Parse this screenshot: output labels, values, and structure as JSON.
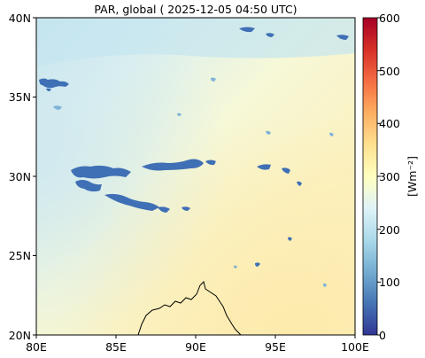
{
  "title": "PAR, global ( 2025-12-05 04:50 UTC)",
  "map": {
    "type": "map",
    "x_ticks": [
      "80E",
      "85E",
      "90E",
      "95E",
      "100E"
    ],
    "y_ticks": [
      "40N",
      "35N",
      "30N",
      "25N",
      "20N"
    ],
    "x_range": [
      80,
      100
    ],
    "y_range": [
      20,
      40
    ]
  },
  "colorbar": {
    "label": "[Wm⁻²]",
    "ticks": [
      "600",
      "500",
      "400",
      "300",
      "200",
      "100",
      "0"
    ],
    "range": [
      0,
      600
    ],
    "colormap": "RdYlBu_r",
    "colors": [
      "#313695",
      "#4575b4",
      "#74add1",
      "#abd9e9",
      "#e0f3f8",
      "#ffffbf",
      "#fee090",
      "#fdae61",
      "#f46d43",
      "#d73027",
      "#a50026"
    ]
  }
}
